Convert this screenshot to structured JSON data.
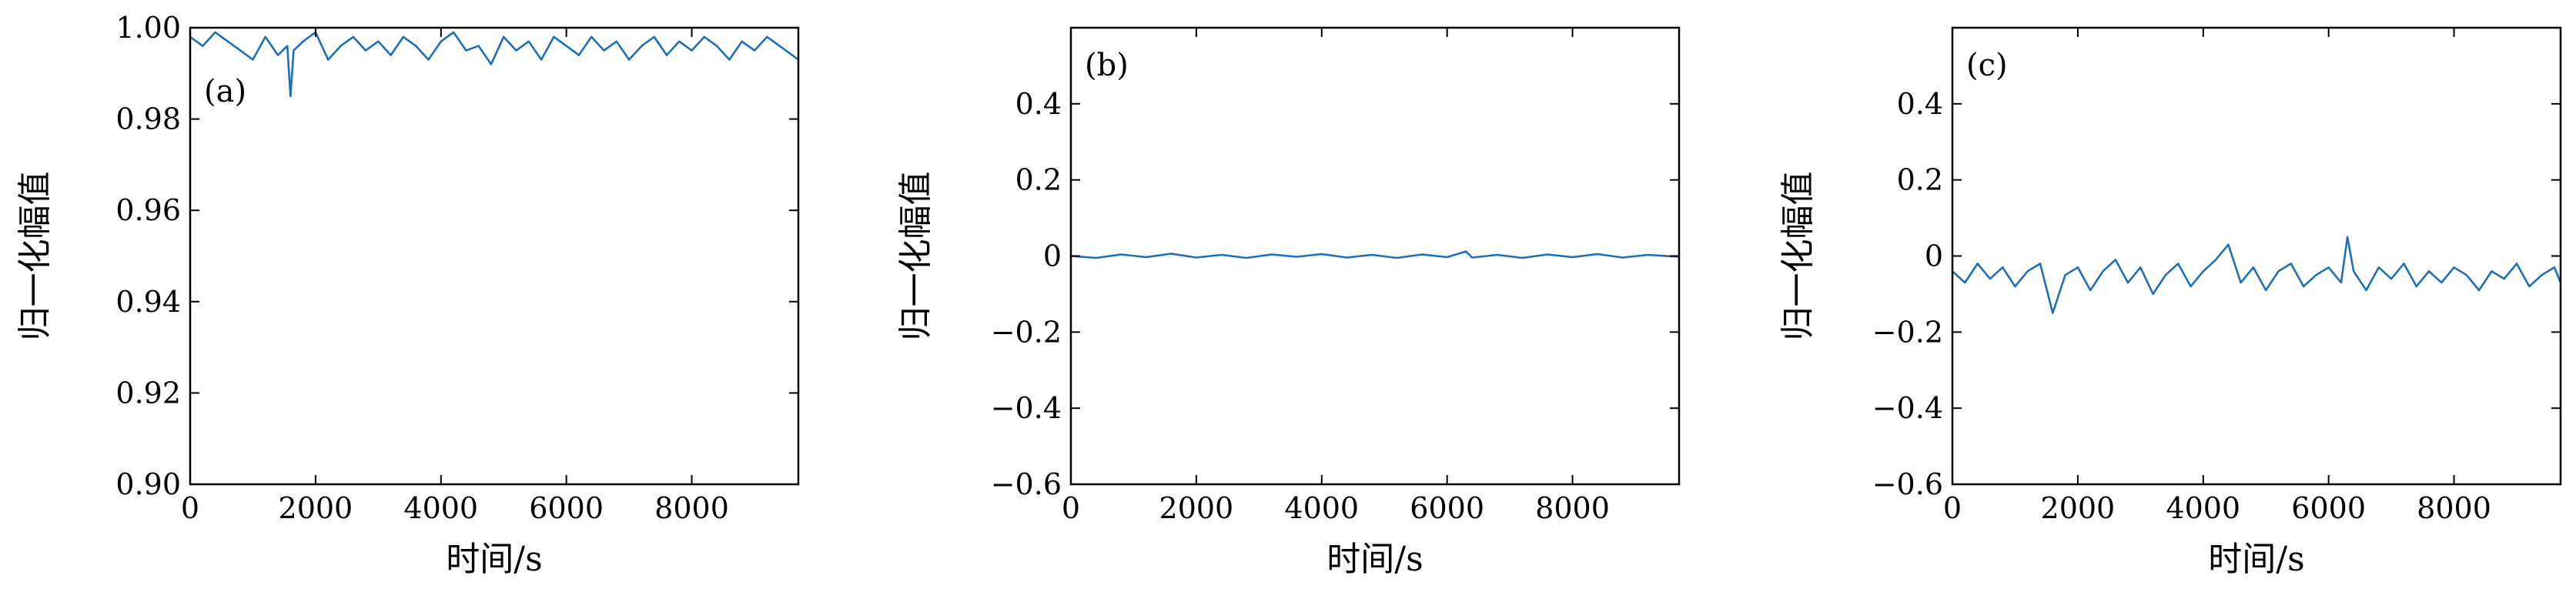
{
  "colors": {
    "series": "#1f6fb4",
    "axis": "#000000",
    "background": "#ffffff"
  },
  "chart_data": [
    {
      "type": "line",
      "panel_label": "(a)",
      "xlabel": "时间/s",
      "ylabel": "归一化幅值",
      "xlim": [
        0,
        9700
      ],
      "ylim": [
        0.9,
        1.0
      ],
      "xticks": [
        0,
        2000,
        4000,
        6000,
        8000
      ],
      "xtick_labels": [
        "0",
        "2000",
        "4000",
        "6000",
        "8000"
      ],
      "yticks": [
        0.9,
        0.92,
        0.94,
        0.96,
        0.98,
        1.0
      ],
      "ytick_labels": [
        "0.90",
        "0.92",
        "0.94",
        "0.96",
        "0.98",
        "1.00"
      ],
      "grid": false,
      "series": [
        {
          "x": [
            0,
            200,
            400,
            600,
            800,
            1000,
            1200,
            1400,
            1550,
            1600,
            1650,
            1800,
            2000,
            2200,
            2400,
            2600,
            2800,
            3000,
            3200,
            3400,
            3600,
            3800,
            4000,
            4200,
            4400,
            4600,
            4800,
            5000,
            5200,
            5400,
            5600,
            5800,
            6000,
            6200,
            6400,
            6600,
            6800,
            7000,
            7200,
            7400,
            7600,
            7800,
            8000,
            8200,
            8400,
            8600,
            8800,
            9000,
            9200,
            9400,
            9600,
            9700
          ],
          "values": [
            0.998,
            0.996,
            0.999,
            0.997,
            0.995,
            0.993,
            0.998,
            0.994,
            0.996,
            0.985,
            0.995,
            0.997,
            0.999,
            0.993,
            0.996,
            0.998,
            0.995,
            0.997,
            0.994,
            0.998,
            0.996,
            0.993,
            0.997,
            0.999,
            0.995,
            0.996,
            0.992,
            0.998,
            0.995,
            0.997,
            0.993,
            0.998,
            0.996,
            0.994,
            0.998,
            0.995,
            0.997,
            0.993,
            0.996,
            0.998,
            0.994,
            0.997,
            0.995,
            0.998,
            0.996,
            0.993,
            0.997,
            0.995,
            0.998,
            0.996,
            0.994,
            0.993
          ]
        }
      ]
    },
    {
      "type": "line",
      "panel_label": "(b)",
      "xlabel": "时间/s",
      "ylabel": "归一化幅值",
      "xlim": [
        0,
        9700
      ],
      "ylim": [
        -0.6,
        0.6
      ],
      "xticks": [
        0,
        2000,
        4000,
        6000,
        8000
      ],
      "xtick_labels": [
        "0",
        "2000",
        "4000",
        "6000",
        "8000"
      ],
      "yticks": [
        -0.6,
        -0.4,
        -0.2,
        0,
        0.2,
        0.4
      ],
      "ytick_labels": [
        "−0.6",
        "−0.4",
        "−0.2",
        "0",
        "0.2",
        "0.4"
      ],
      "grid": false,
      "series": [
        {
          "x": [
            0,
            400,
            800,
            1200,
            1600,
            2000,
            2400,
            2800,
            3200,
            3600,
            4000,
            4400,
            4800,
            5200,
            5600,
            6000,
            6300,
            6400,
            6800,
            7200,
            7600,
            8000,
            8400,
            8800,
            9200,
            9700
          ],
          "values": [
            0.0,
            -0.005,
            0.004,
            -0.003,
            0.006,
            -0.004,
            0.003,
            -0.005,
            0.004,
            -0.002,
            0.005,
            -0.004,
            0.003,
            -0.005,
            0.004,
            -0.003,
            0.012,
            -0.004,
            0.003,
            -0.005,
            0.004,
            -0.003,
            0.005,
            -0.004,
            0.003,
            -0.002
          ]
        }
      ]
    },
    {
      "type": "line",
      "panel_label": "(c)",
      "xlabel": "时间/s",
      "ylabel": "归一化幅值",
      "xlim": [
        0,
        9700
      ],
      "ylim": [
        -0.6,
        0.6
      ],
      "xticks": [
        0,
        2000,
        4000,
        6000,
        8000
      ],
      "xtick_labels": [
        "0",
        "2000",
        "4000",
        "6000",
        "8000"
      ],
      "yticks": [
        -0.6,
        -0.4,
        -0.2,
        0,
        0.2,
        0.4
      ],
      "ytick_labels": [
        "−0.6",
        "−0.4",
        "−0.2",
        "0",
        "0.2",
        "0.4"
      ],
      "grid": false,
      "series": [
        {
          "x": [
            0,
            200,
            400,
            600,
            800,
            1000,
            1200,
            1400,
            1600,
            1800,
            2000,
            2200,
            2400,
            2600,
            2800,
            3000,
            3200,
            3400,
            3600,
            3800,
            4000,
            4200,
            4400,
            4600,
            4800,
            5000,
            5200,
            5400,
            5600,
            5800,
            6000,
            6200,
            6300,
            6400,
            6600,
            6800,
            7000,
            7200,
            7400,
            7600,
            7800,
            8000,
            8200,
            8400,
            8600,
            8800,
            9000,
            9200,
            9400,
            9600,
            9700
          ],
          "values": [
            -0.04,
            -0.07,
            -0.02,
            -0.06,
            -0.03,
            -0.08,
            -0.04,
            -0.02,
            -0.15,
            -0.05,
            -0.03,
            -0.09,
            -0.04,
            -0.01,
            -0.07,
            -0.03,
            -0.1,
            -0.05,
            -0.02,
            -0.08,
            -0.04,
            -0.01,
            0.03,
            -0.07,
            -0.03,
            -0.09,
            -0.04,
            -0.02,
            -0.08,
            -0.05,
            -0.03,
            -0.07,
            0.05,
            -0.04,
            -0.09,
            -0.03,
            -0.06,
            -0.02,
            -0.08,
            -0.04,
            -0.07,
            -0.03,
            -0.05,
            -0.09,
            -0.04,
            -0.06,
            -0.02,
            -0.08,
            -0.05,
            -0.03,
            -0.07
          ]
        }
      ]
    }
  ]
}
